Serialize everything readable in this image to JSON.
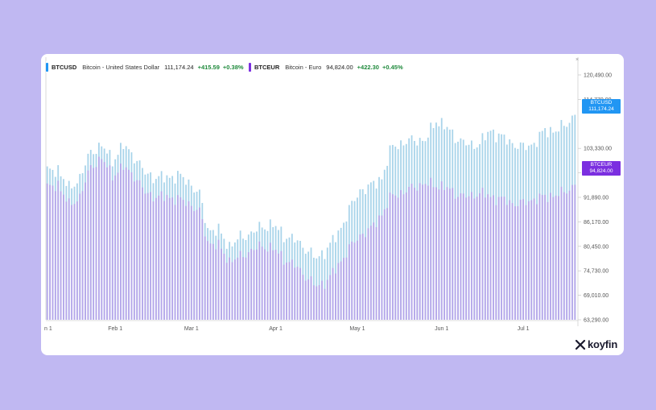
{
  "colors": {
    "background": "#c0b8f2",
    "usd_series": "#a9d4ea",
    "eur_series": "#b6a6ea",
    "usd_tag": "#2196f3",
    "eur_tag": "#7b2fe0",
    "positive": "#1f8a3c"
  },
  "legend": {
    "usd": {
      "symbol": "BTCUSD",
      "name": "Bitcoin - United States Dollar",
      "value": "111,174.24",
      "change": "+415.59",
      "pct": "+0.38%"
    },
    "eur": {
      "symbol": "BTCEUR",
      "name": "Bitcoin - Euro",
      "value": "94,824.00",
      "change": "+422.30",
      "pct": "+0.45%"
    }
  },
  "price_tags": {
    "usd": {
      "symbol": "BTCUSD",
      "value": "111,174.24"
    },
    "eur": {
      "symbol": "BTCEUR",
      "value": "94,824.00"
    }
  },
  "corner_mark": "×",
  "logo": {
    "text": "koyfin",
    "icon": "koyfin-logo-icon"
  },
  "chart_data": {
    "type": "bar",
    "x_start": "2025-01-07",
    "x_labels": [
      "n 1",
      "Feb 1",
      "Mar 1",
      "Apr 1",
      "May 1",
      "Jun 1",
      "Jul 1"
    ],
    "y_ticks": [
      "120,490.00",
      "114,770.00",
      "103,330.00",
      "97,610.00",
      "91,890.00",
      "86,170.00",
      "80,450.00",
      "74,730.00",
      "69,010.00",
      "63,290.00"
    ],
    "ylim": [
      63290,
      123000
    ],
    "grid": false,
    "series": [
      {
        "name": "BTCUSD",
        "keypoints": [
          [
            0,
            97800
          ],
          [
            4,
            98500
          ],
          [
            8,
            93800
          ],
          [
            12,
            96500
          ],
          [
            16,
            102500
          ],
          [
            20,
            104000
          ],
          [
            24,
            100500
          ],
          [
            28,
            104000
          ],
          [
            32,
            101500
          ],
          [
            36,
            97500
          ],
          [
            40,
            96500
          ],
          [
            44,
            96500
          ],
          [
            48,
            97000
          ],
          [
            52,
            95500
          ],
          [
            56,
            92500
          ],
          [
            59,
            84500
          ],
          [
            63,
            84000
          ],
          [
            67,
            80500
          ],
          [
            71,
            82500
          ],
          [
            75,
            83500
          ],
          [
            79,
            85000
          ],
          [
            83,
            85500
          ],
          [
            87,
            83000
          ],
          [
            91,
            82000
          ],
          [
            95,
            80000
          ],
          [
            99,
            77500
          ],
          [
            103,
            80000
          ],
          [
            107,
            83500
          ],
          [
            111,
            89000
          ],
          [
            115,
            93500
          ],
          [
            119,
            94500
          ],
          [
            123,
            96500
          ],
          [
            127,
            104000
          ],
          [
            131,
            104500
          ],
          [
            135,
            105500
          ],
          [
            139,
            105000
          ],
          [
            143,
            110000
          ],
          [
            147,
            108000
          ],
          [
            151,
            105500
          ],
          [
            155,
            104000
          ],
          [
            159,
            104500
          ],
          [
            163,
            107500
          ],
          [
            167,
            106000
          ],
          [
            171,
            104500
          ],
          [
            175,
            103500
          ],
          [
            179,
            104500
          ],
          [
            183,
            107500
          ],
          [
            187,
            107500
          ],
          [
            190,
            108500
          ],
          [
            194,
            111174
          ]
        ]
      },
      {
        "name": "BTCEUR",
        "keypoints": [
          [
            0,
            94000
          ],
          [
            4,
            95000
          ],
          [
            8,
            90000
          ],
          [
            12,
            92000
          ],
          [
            16,
            99000
          ],
          [
            20,
            101000
          ],
          [
            24,
            97000
          ],
          [
            28,
            99000
          ],
          [
            32,
            97000
          ],
          [
            36,
            93000
          ],
          [
            40,
            92000
          ],
          [
            44,
            92000
          ],
          [
            48,
            91500
          ],
          [
            52,
            90500
          ],
          [
            56,
            88500
          ],
          [
            59,
            81500
          ],
          [
            63,
            80500
          ],
          [
            67,
            77000
          ],
          [
            71,
            78000
          ],
          [
            75,
            79500
          ],
          [
            79,
            80500
          ],
          [
            83,
            80000
          ],
          [
            87,
            77500
          ],
          [
            91,
            76000
          ],
          [
            95,
            73500
          ],
          [
            99,
            71000
          ],
          [
            103,
            72500
          ],
          [
            107,
            76000
          ],
          [
            111,
            80000
          ],
          [
            115,
            83000
          ],
          [
            119,
            84500
          ],
          [
            123,
            88000
          ],
          [
            127,
            92500
          ],
          [
            131,
            93000
          ],
          [
            135,
            94500
          ],
          [
            139,
            95000
          ],
          [
            143,
            94800
          ],
          [
            147,
            94000
          ],
          [
            151,
            92500
          ],
          [
            155,
            92000
          ],
          [
            159,
            93000
          ],
          [
            163,
            92000
          ],
          [
            167,
            91500
          ],
          [
            171,
            90500
          ],
          [
            175,
            90500
          ],
          [
            179,
            91500
          ],
          [
            183,
            92000
          ],
          [
            187,
            92500
          ],
          [
            190,
            93000
          ],
          [
            194,
            94824
          ]
        ]
      }
    ]
  }
}
